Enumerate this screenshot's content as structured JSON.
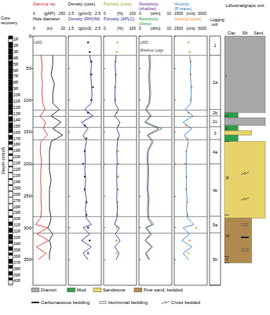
{
  "chart_data": {
    "type": "well_log",
    "y_label": "Depth (mbsf)",
    "ylim": [
      0,
      390
    ],
    "yticks": [
      0,
      50,
      100,
      150,
      200,
      250,
      300,
      350
    ],
    "core_header": "Core recovery",
    "core_labels": [
      "1R",
      "2R",
      "3R",
      "4R",
      "5R",
      "6R",
      "7R",
      "8R",
      "9R",
      "10R",
      "11R",
      "12R",
      "13R",
      "14R",
      "15R",
      "16R",
      "17R",
      "18R",
      "19R",
      "20R",
      "21R",
      "22R",
      "23R",
      "24R",
      "25R",
      "26R",
      "27R",
      "28R",
      "29R",
      "30R",
      "31R",
      "32R",
      "33R",
      "34R",
      "35R",
      "36R",
      "37R",
      "38R",
      "39R",
      "40R"
    ],
    "core_tops": [
      0,
      9.7,
      19.4,
      29.1,
      38.8,
      48.5,
      58.2,
      67.9,
      77.6,
      87.3,
      97,
      106.7,
      116.4,
      126.1,
      135.8,
      145.5,
      155.2,
      164.9,
      174.6,
      184.3,
      194,
      203.7,
      213.4,
      223.1,
      232.8,
      242.5,
      252.2,
      261.9,
      271.6,
      281.3,
      291,
      300.7,
      310.4,
      320.1,
      329.8,
      339.5,
      349.2,
      358.9,
      368.6,
      378.3
    ],
    "core_bases": [
      9.7,
      19.4,
      29.1,
      38.8,
      48.5,
      58.2,
      67.9,
      77.6,
      87.3,
      97,
      106.7,
      116.4,
      126.1,
      135.8,
      145.5,
      155.2,
      164.9,
      174.6,
      184.3,
      194,
      203.7,
      213.4,
      223.1,
      232.8,
      242.5,
      252.2,
      261.9,
      271.6,
      281.3,
      291,
      300.7,
      310.4,
      320.1,
      329.8,
      339.5,
      349.2,
      358.9,
      368.6,
      378.3,
      388
    ],
    "core_recovered": [
      5,
      9,
      9.5,
      8,
      9,
      9.7,
      9.2,
      9.5,
      8.8,
      9.6,
      9,
      9.3,
      7,
      8,
      9.5,
      6,
      7,
      5,
      4,
      3,
      2,
      1.5,
      1,
      2,
      1.5,
      1,
      0.5,
      1,
      2,
      3,
      6,
      7,
      8,
      5,
      6,
      4,
      7,
      5,
      6,
      4
    ],
    "tracks": [
      {
        "curves": [
          {
            "name": "Gamma ray",
            "unit": "(gAPI)",
            "xlim": [
              0,
              250
            ],
            "color": "#e0201b",
            "type": "line",
            "line_style": "solid",
            "depth": [
              30,
              45,
              60,
              75,
              90,
              105,
              115,
              125,
              135,
              145,
              155,
              165,
              180,
              195,
              210,
              225,
              240,
              255,
              270,
              285,
              295,
              300,
              310,
              320,
              330,
              340,
              350
            ],
            "values": [
              60,
              70,
              65,
              72,
              68,
              75,
              90,
              55,
              95,
              80,
              110,
              60,
              55,
              65,
              60,
              58,
              62,
              60,
              65,
              58,
              20,
              110,
              30,
              120,
              25,
              100,
              40
            ]
          },
          {
            "name": "Hole diameter",
            "unit": "(in)",
            "xlim": [
              0,
              20
            ],
            "color": "#000000",
            "type": "line",
            "line_style": "solid",
            "depth": [
              30,
              45,
              60,
              75,
              90,
              105,
              115,
              125,
              135,
              145,
              155,
              165,
              180,
              195,
              210,
              225,
              240,
              255,
              270,
              285,
              295,
              300,
              310,
              320,
              330,
              340,
              350
            ],
            "values": [
              12,
              12,
              11,
              13,
              12,
              12,
              16,
              11,
              17,
              12,
              18,
              11,
              10,
              10,
              10,
              11,
              10,
              10,
              10,
              11,
              10,
              9,
              12,
              10,
              11,
              10,
              10
            ]
          }
        ]
      },
      {
        "curves": [
          {
            "name": "Density (core)",
            "unit": "(g/cm3)",
            "xlim": [
              1.5,
              2.5
            ],
            "color": "#000000",
            "type": "scatter",
            "marker": "circle",
            "depth": [
              10,
              25,
              40,
              60,
              80,
              100,
              120,
              140,
              160,
              180,
              200,
              220,
              240,
              260,
              280,
              300,
              320,
              340
            ],
            "values": [
              2.1,
              2.15,
              2.2,
              2.2,
              2.25,
              2.2,
              2.1,
              2.0,
              2.05,
              2.0,
              1.95,
              2.0,
              2.0,
              2.05,
              2.05,
              2.1,
              2.15,
              2.1
            ]
          },
          {
            "name": "Density (RHOM)",
            "unit": "(g/cm3)",
            "xlim": [
              1.5,
              2.5
            ],
            "color": "#1a2a8c",
            "type": "line",
            "line_style": "solid",
            "depth": [
              30,
              45,
              60,
              75,
              90,
              105,
              115,
              125,
              135,
              145,
              155,
              165,
              180,
              195,
              210,
              225,
              240,
              255,
              270,
              285,
              295,
              300,
              310,
              320,
              330,
              340,
              350
            ],
            "values": [
              2.15,
              2.2,
              2.18,
              2.2,
              2.22,
              2.2,
              2.0,
              2.25,
              1.9,
              2.1,
              1.95,
              2.05,
              2.0,
              2.02,
              2.0,
              2.03,
              2.0,
              2.05,
              2.02,
              2.05,
              2.2,
              1.95,
              2.15,
              1.9,
              2.2,
              1.95,
              2.1
            ]
          }
        ]
      },
      {
        "curves": [
          {
            "name": "Porosity (core)",
            "unit": "(%)",
            "xlim": [
              0,
              100
            ],
            "color": "#9aa41e",
            "type": "scatter",
            "marker": "circle",
            "depth": [
              10,
              25,
              40,
              60,
              80,
              100,
              120,
              140,
              160,
              180,
              200,
              220,
              240,
              260,
              280,
              300,
              320,
              340
            ],
            "values": [
              42,
              40,
              36,
              36,
              34,
              36,
              40,
              45,
              42,
              44,
              45,
              44,
              44,
              42,
              42,
              40,
              38,
              40
            ]
          },
          {
            "name": "Porosity (APLC)",
            "unit": "(%)",
            "xlim": [
              0,
              100
            ],
            "color": "#1a2a8c",
            "type": "line",
            "line_style": "solid",
            "depth": [
              30,
              45,
              60,
              75,
              90,
              105,
              115,
              125,
              135,
              145,
              155,
              165,
              180,
              195,
              210,
              225,
              240,
              255,
              270,
              285,
              295,
              300,
              310,
              320,
              330,
              340,
              350
            ],
            "values": [
              38,
              35,
              37,
              36,
              34,
              35,
              45,
              33,
              50,
              40,
              48,
              42,
              40,
              41,
              40,
              40,
              41,
              40,
              42,
              40,
              33,
              48,
              36,
              50,
              34,
              47,
              38
            ]
          }
        ]
      },
      {
        "curves": [
          {
            "name": "Resistivity (shallow)",
            "unit": "(ohm)",
            "xlim": [
              0,
              10
            ],
            "color": "#7a1f9c",
            "type": "line",
            "line_style": "solid",
            "depth": [
              30,
              45,
              60,
              75,
              90,
              105,
              115,
              125,
              135,
              145,
              155,
              165,
              180,
              195,
              210,
              225,
              240,
              255,
              270,
              285,
              295,
              300,
              310,
              320,
              330,
              340,
              350
            ],
            "values": [
              3,
              3.2,
              3,
              3.1,
              3.3,
              3,
              2,
              3.5,
              1.8,
              6,
              2.5,
              4,
              2.6,
              2.5,
              2.7,
              2.6,
              2.5,
              2.8,
              2.6,
              2.7,
              4,
              2,
              3.5,
              1.8,
              3.8,
              2,
              3
            ]
          },
          {
            "name": "Resistivity (deep)",
            "unit": "(ohm)",
            "xlim": [
              0,
              10
            ],
            "color": "#2a9a3a",
            "type": "line",
            "line_style": "solid",
            "depth": [
              30,
              45,
              60,
              75,
              90,
              105,
              115,
              125,
              135,
              145,
              155,
              165,
              180,
              195,
              210,
              225,
              240,
              255,
              270,
              285,
              295,
              300,
              310,
              320,
              330,
              340,
              350
            ],
            "values": [
              3.4,
              3.5,
              3.3,
              3.4,
              3.6,
              3.3,
              2.3,
              3.8,
              2,
              7,
              2.8,
              4.4,
              2.9,
              2.8,
              3,
              2.9,
              2.8,
              3.1,
              2.9,
              3,
              4.5,
              2.2,
              3.9,
              2,
              4.2,
              2.2,
              3.3
            ]
          }
        ]
      },
      {
        "curves": [
          {
            "name": "Velocity (P-wave)",
            "unit": "(m/s)",
            "xlim": [
              1500,
              3000
            ],
            "color": "#1f78c8",
            "type": "line",
            "line_style": "solid",
            "depth": [
              30,
              45,
              60,
              75,
              90,
              105,
              115,
              125,
              135,
              145,
              155,
              165,
              180,
              195,
              210,
              225,
              240,
              255,
              270,
              285,
              295,
              300,
              310,
              320,
              330,
              340,
              350
            ],
            "values": [
              2200,
              2250,
              2230,
              2260,
              2280,
              2250,
              2000,
              2350,
              1900,
              2300,
              1950,
              2150,
              2050,
              2050,
              2040,
              2060,
              2050,
              2080,
              2060,
              2100,
              2400,
              1900,
              2200,
              1850,
              2300,
              1900,
              2150
            ]
          },
          {
            "name": "Velocity (core)",
            "unit": "(m/s)",
            "xlim": [
              1500,
              3000
            ],
            "color": "#f08c1e",
            "type": "scatter",
            "marker": "circle",
            "depth": [
              10,
              25,
              40,
              60,
              80,
              100,
              120,
              140,
              160,
              180,
              200,
              220,
              240,
              260,
              280,
              300,
              320,
              340
            ],
            "values": [
              2150,
              2200,
              2250,
              2250,
              2300,
              2250,
              2150,
              2050,
              2100,
              2050,
              2000,
              2050,
              2050,
              2100,
              2100,
              2500,
              2200,
              2150
            ]
          }
        ]
      }
    ],
    "annotations": [
      {
        "text": "LWD",
        "track": 0,
        "depth": 10
      },
      {
        "text": "LWD",
        "track": 3,
        "depth": 10
      },
      {
        "text": "Wireline Logs",
        "track": 3,
        "depth": 22
      }
    ],
    "logging_header": "Logging unit",
    "logging_units": [
      {
        "label": "1",
        "top": 0,
        "base": 30
      },
      {
        "label": "2a",
        "top": 30,
        "base": 115
      },
      {
        "label": "2b",
        "top": 115,
        "base": 125
      },
      {
        "label": "2c",
        "top": 125,
        "base": 142
      },
      {
        "label": "3",
        "top": 142,
        "base": 162
      },
      {
        "label": "4a",
        "top": 162,
        "base": 200
      },
      {
        "label": "4b",
        "top": 200,
        "base": 282
      },
      {
        "label": "5a",
        "top": 282,
        "base": 308
      },
      {
        "label": "5b",
        "top": 308,
        "base": 390
      }
    ],
    "litho_header": "Lithostratigrapic unit",
    "grain_classes": [
      "Clay",
      "Silt",
      "Sand"
    ],
    "lithologies": [
      {
        "name": "Diamict",
        "color": "#a8a8a8"
      },
      {
        "name": "Mud",
        "color": "#2e9e4a"
      },
      {
        "name": "Sandstone",
        "color": "#e8d36a"
      },
      {
        "name": "Fine sand, bedded",
        "color": "#b08a50"
      }
    ],
    "litho_intervals": [
      {
        "lith": "Diamict",
        "grain": "Sand",
        "top": 0,
        "base": 120
      },
      {
        "lith": "Mud",
        "grain": "Clay",
        "top": 120,
        "base": 128
      },
      {
        "lith": "Diamict",
        "grain": "Sand",
        "top": 128,
        "base": 140
      },
      {
        "lith": "Mud",
        "grain": "Clay",
        "top": 140,
        "base": 148
      },
      {
        "lith": "Sandstone",
        "grain": "Silt",
        "top": 148,
        "base": 155
      },
      {
        "lith": "Mud",
        "grain": "Clay",
        "top": 155,
        "base": 165
      },
      {
        "lith": "Sandstone",
        "grain": "Sand",
        "top": 165,
        "base": 285
      },
      {
        "lith": "Fine sand, bedded",
        "grain": "Silt",
        "top": 285,
        "base": 355
      }
    ],
    "litho_units": [
      {
        "label": "I",
        "top": 0,
        "base": 125
      },
      {
        "label": "II",
        "top": 125,
        "base": 165
      },
      {
        "label": "III",
        "top": 165,
        "base": 280
      },
      {
        "label": "IV",
        "top": 280,
        "base": 345
      },
      {
        "label": "V",
        "top": 345,
        "base": 355
      }
    ],
    "structure_types": [
      {
        "name": "Carbonaceous bedding",
        "line_style": "thick"
      },
      {
        "name": "Horizontal bedding",
        "line_style": "double"
      },
      {
        "name": "Cross bedded",
        "line_style": "slanted"
      }
    ],
    "structures": [
      {
        "type": "Cross bedded",
        "depth": 215
      },
      {
        "type": "Cross bedded",
        "depth": 255
      },
      {
        "type": "Horizontal bedding",
        "depth": 295
      },
      {
        "type": "Carbonaceous bedding",
        "depth": 315
      },
      {
        "type": "Horizontal bedding",
        "depth": 335
      }
    ]
  }
}
